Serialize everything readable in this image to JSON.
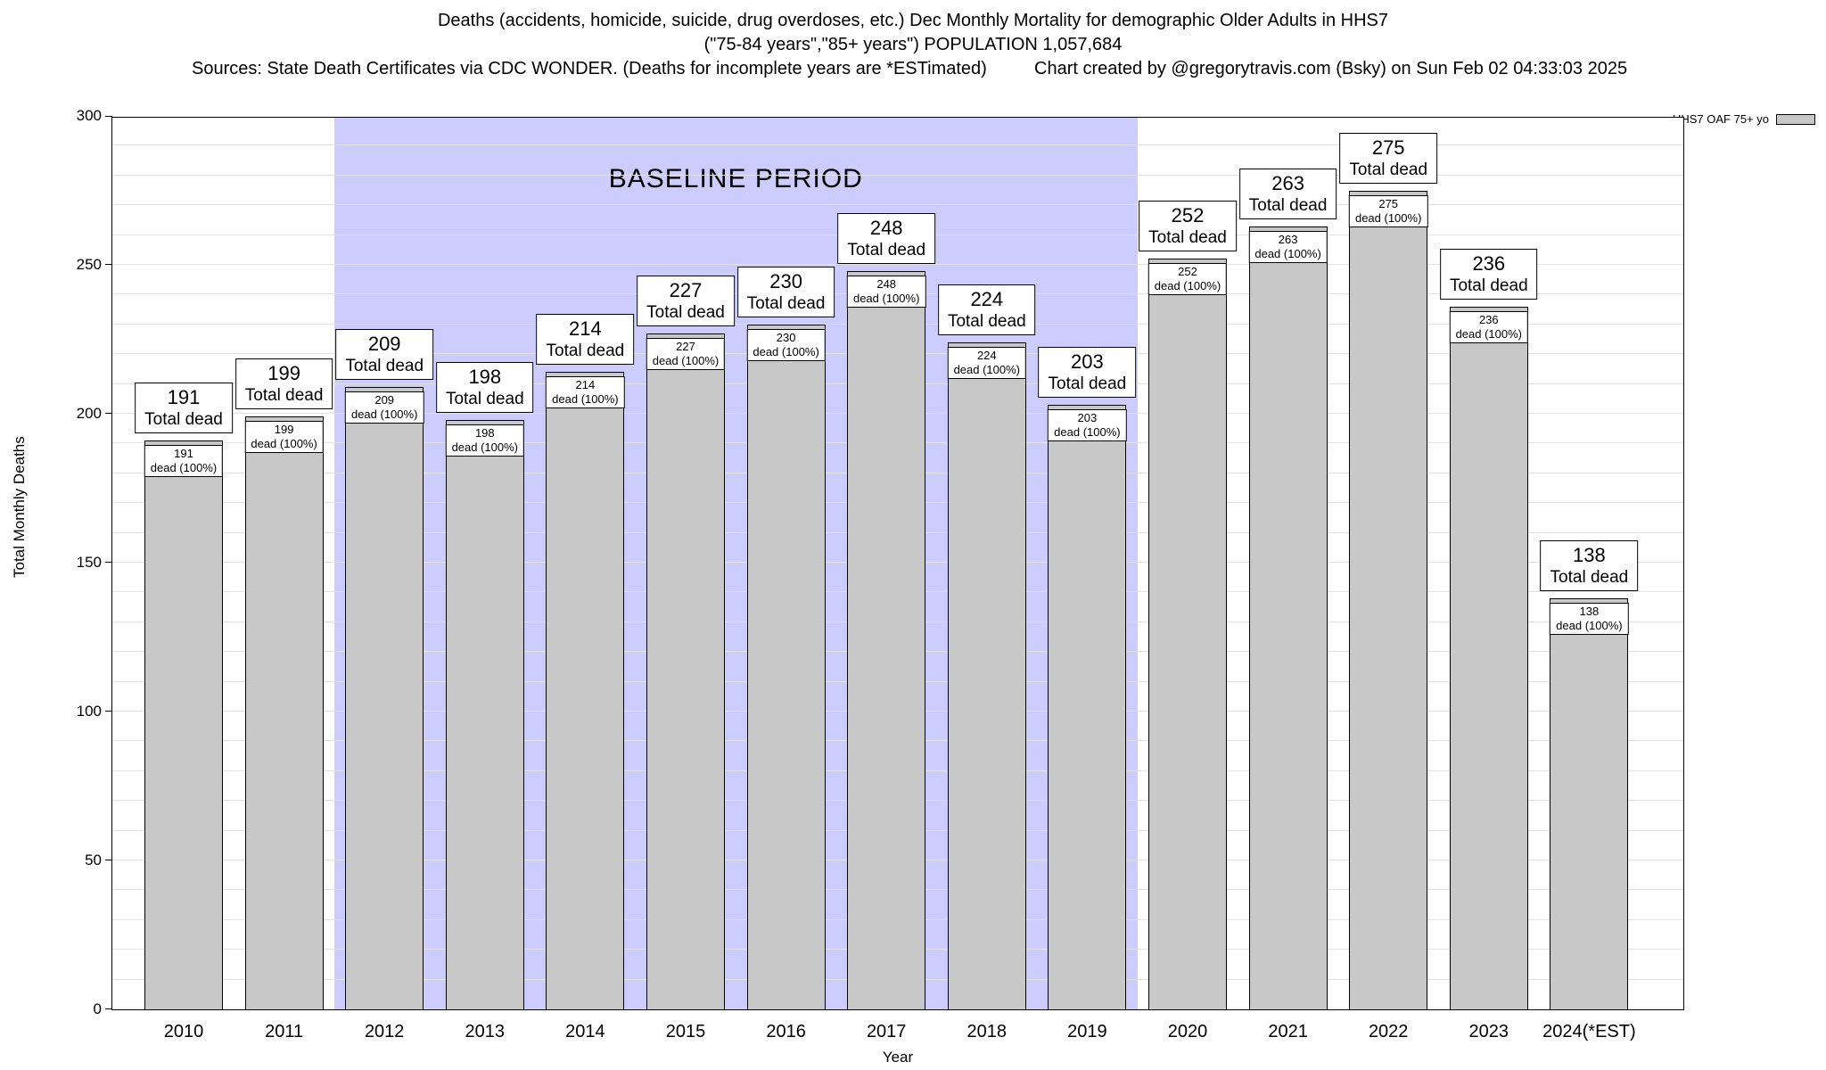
{
  "header": {
    "title_line1": "Deaths (accidents, homicide, suicide, drug overdoses, etc.) Dec Monthly Mortality for demographic Older Adults in HHS7",
    "title_line2": "(\"75-84 years\",\"85+ years\") POPULATION 1,057,684",
    "sources": "Sources: State Death Certificates via CDC WONDER. (Deaths for incomplete years are *ESTimated)",
    "credit": "Chart created by @gregorytravis.com (Bsky) on Sun Feb 02 04:33:03 2025"
  },
  "chart_data": {
    "type": "bar",
    "title": "Deaths (accidents, homicide, suicide, drug overdoses, etc.) Dec Monthly Mortality for demographic Older Adults in HHS7",
    "categories": [
      "2010",
      "2011",
      "2012",
      "2013",
      "2014",
      "2015",
      "2016",
      "2017",
      "2018",
      "2019",
      "2020",
      "2021",
      "2022",
      "2023",
      "2024(*EST)"
    ],
    "values": [
      191,
      199,
      209,
      198,
      214,
      227,
      230,
      248,
      224,
      203,
      252,
      263,
      275,
      236,
      138
    ],
    "bar_label_top": "Total dead",
    "bar_label_inner": "dead (100%)",
    "xlabel": "Year",
    "ylabel": "Total Monthly Deaths",
    "ylim": [
      0,
      300
    ],
    "yticks": [
      0,
      50,
      100,
      150,
      200,
      250,
      300
    ],
    "grid_step": 10,
    "grid": true,
    "bar_color": "#c8c8c8",
    "legend": {
      "label": "HHS7 OAF 75+ yo",
      "position": "top-right",
      "swatch_color": "#c8c8c8"
    },
    "baseline_band": {
      "label": "BASELINE PERIOD",
      "start_category": "2012",
      "end_category": "2019",
      "color": "#ccccff"
    }
  }
}
